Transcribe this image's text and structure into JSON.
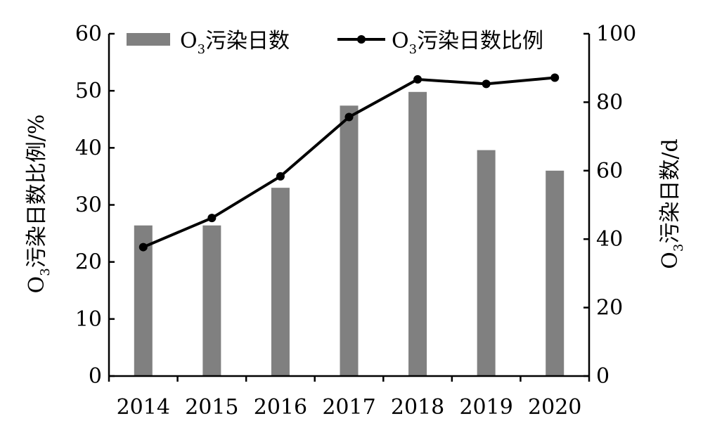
{
  "chart_data": {
    "type": "bar",
    "categories": [
      "2014",
      "2015",
      "2016",
      "2017",
      "2018",
      "2019",
      "2020"
    ],
    "series": [
      {
        "name": "O3污染日数",
        "type": "bar",
        "axis": "right",
        "unit": "d",
        "values": [
          44,
          44,
          55,
          79,
          83,
          66,
          60
        ]
      },
      {
        "name": "O3污染日数比例",
        "type": "line",
        "axis": "left",
        "unit": "%",
        "values": [
          22.6,
          27.7,
          35.0,
          45.4,
          52.0,
          51.2,
          52.3
        ]
      }
    ],
    "legend": {
      "position": "top",
      "labels": [
        {
          "base": "O",
          "sub": "3",
          "rest": "污染日数"
        },
        {
          "base": "O",
          "sub": "3",
          "rest": "污染日数比例"
        }
      ]
    },
    "y_left": {
      "label": {
        "base": "O",
        "sub": "3",
        "rest": "污染日数比例/%"
      },
      "range": [
        0,
        60
      ],
      "ticks": [
        0,
        10,
        20,
        30,
        40,
        50,
        60
      ]
    },
    "y_right": {
      "label": {
        "base": "O",
        "sub": "3",
        "rest": "污染日数/d"
      },
      "range": [
        0,
        100
      ],
      "ticks": [
        0,
        20,
        40,
        60,
        80,
        100
      ]
    },
    "grid": false,
    "colors": {
      "bar": "#808080",
      "line": "#000000",
      "axis": "#000000"
    }
  }
}
